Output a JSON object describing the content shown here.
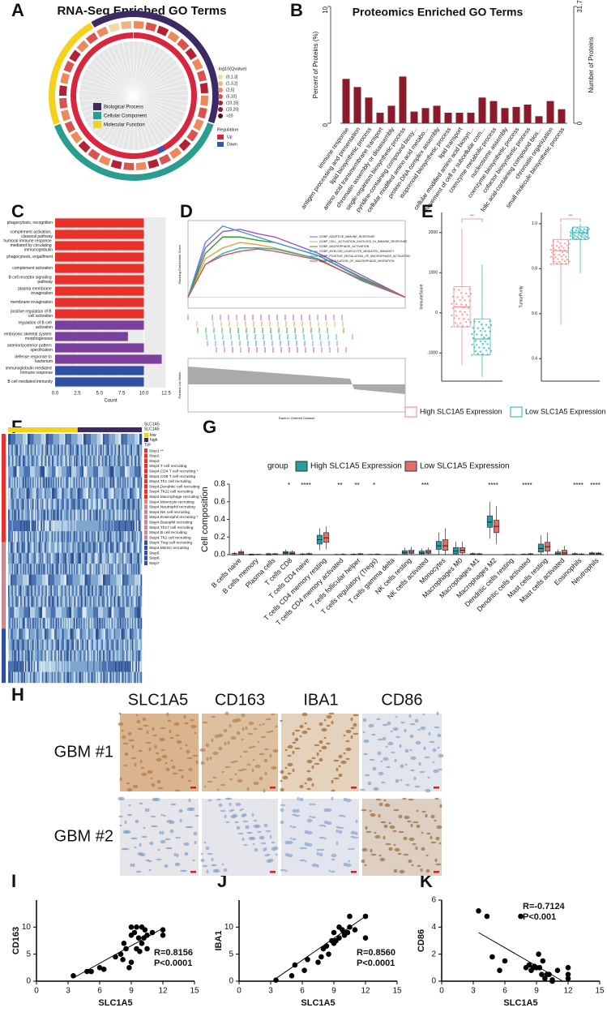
{
  "chart_data": [
    {
      "type": "circos",
      "panel": "A",
      "title": "RNA-Seq Enriched GO Terms",
      "categories": [
        "Biological Process",
        "Cellular Component",
        "Molecular Function"
      ],
      "colors": [
        "#3b2a63",
        "#2a9d8f",
        "#f2d21b"
      ],
      "color_scale": {
        "title": "-log10(Qvalue)",
        "labels": [
          "(0,1.3]",
          "(1.3,2]",
          "(2,5]",
          "(5,10]",
          "(10,15]",
          "(15,20]",
          ">20"
        ],
        "colors": [
          "#f7d9a8",
          "#f4b183",
          "#ec8a5c",
          "#d9534f",
          "#b22234",
          "#8b1a2b",
          "#5a0f1d"
        ]
      },
      "regulation": {
        "title": "Regulation",
        "labels": [
          "Up",
          "Down"
        ],
        "colors": [
          "#d7263d",
          "#3a57a7"
        ]
      }
    },
    {
      "type": "bar",
      "panel": "B",
      "title": "Proteomics Enriched GO Terms",
      "ylabel": "Percent of Proteins (%)",
      "y2label": "Number of Proteins",
      "color": "#8b1a2b",
      "categories": [
        "immune response",
        "antigen processing and presentation",
        "lipid biosynthetic process",
        "amino acid transmembrane transport",
        "chromatin assembly or disassembly",
        "single-organism biosynthetic process",
        "pyridine-containing compound biosy...",
        "cellular modified amino acid metabo...",
        "protein-DNA complex assembly",
        "isoprenoid biosynthetic process",
        "lipid transport",
        "cellular modified amino acid biosyn...",
        "movement of cell or subcellular com...",
        "coenzyme metabolic process",
        "nucleosome assembly",
        "coenzyme biosynthetic process",
        "cofactor biosynthetic process",
        "folic acid-containing compound bios...",
        "chromatin organization",
        "small molecule biosynthetic process"
      ],
      "values": [
        3.8,
        3.1,
        2.2,
        0.9,
        1.5,
        4.0,
        1.0,
        1.3,
        1.5,
        0.9,
        0.9,
        0.9,
        2.2,
        1.9,
        1.3,
        1.4,
        1.6,
        0.6,
        1.9,
        1.2
      ],
      "ylim": [
        0,
        10
      ],
      "yticks": [
        0,
        10
      ],
      "y2lim": [
        0,
        31.7
      ],
      "y2ticks": [
        0,
        31.7
      ]
    },
    {
      "type": "hbar",
      "panel": "C",
      "xlabel": "Count",
      "xlim": [
        0,
        12.5
      ],
      "xticks": [
        {
          "value": 0,
          "label": "0.0"
        },
        2.5,
        {
          "value": 5,
          "label": "5.0"
        },
        7.5,
        {
          "value": 10,
          "label": "10.0"
        },
        12.5
      ],
      "categories": [
        "phagocytosis, recognition",
        "complement activation, classical pathway",
        "humoral immune response mediated by circulating immunoglobulin",
        "phagocytosis, engulfment",
        "complement activation",
        "B cell receptor signaling pathway",
        "plasma membrane invagination",
        "membrane invagination",
        "positive regulation of B cell activation",
        "regulation of B cell activation",
        "embryonic skeletal system morphogenesis",
        "anterior/posterior pattern specification",
        "defense response to bacterium",
        "immunoglobulin mediated immune response",
        "B cell mediated immunity"
      ],
      "values": [
        10,
        10,
        10,
        10,
        10,
        10,
        10,
        10,
        10,
        10,
        8.2,
        10,
        12,
        10,
        10
      ],
      "colors": [
        "#e8312a",
        "#e8312a",
        "#e8312a",
        "#e8312a",
        "#e8312a",
        "#e8312a",
        "#e8312a",
        "#e8312a",
        "#e8312a",
        "#7b3f9e",
        "#7b3f9e",
        "#7b3f9e",
        "#7b3f9e",
        "#2f4fa2",
        "#2f4fa2"
      ]
    },
    {
      "type": "line",
      "panel": "D",
      "ylabel": "Running Enrichment Score",
      "xlabel": "Rank in Ordered Dataset",
      "metric_label": "Ranked List Metric",
      "xlim": [
        0,
        25000
      ],
      "ylim": [
        -0.1,
        0.7
      ],
      "x": [
        0,
        2000,
        4000,
        6000,
        8000,
        10000,
        15000,
        20000,
        25000
      ],
      "series": [
        {
          "name": "GOBP_ADAPTIVE_IMMUNE_RESPONSE",
          "color": "#9b59b6",
          "values": [
            0,
            0.45,
            0.6,
            0.62,
            0.58,
            0.55,
            0.4,
            0.2,
            0
          ]
        },
        {
          "name": "GOBP_CELL_ACTIVATION_INVOLVED_IN_IMMUNE_RESPONSE",
          "color": "#e6a03c",
          "values": [
            0,
            0.35,
            0.45,
            0.5,
            0.48,
            0.45,
            0.35,
            0.15,
            0
          ]
        },
        {
          "name": "GOBP_MACROPHAGE_ACTIVATION",
          "color": "#2ca02c",
          "values": [
            0,
            0.4,
            0.55,
            0.55,
            0.52,
            0.5,
            0.38,
            0.18,
            0
          ]
        },
        {
          "name": "GOBP_MYELOID_LEUKOCYTE_MEDIATED_IMMUNITY",
          "color": "#20b2aa",
          "values": [
            0,
            0.3,
            0.4,
            0.45,
            0.45,
            0.44,
            0.35,
            0.15,
            0
          ]
        },
        {
          "name": "GOBP_POSITIVE_REGULATION_OF_MACROPHAGE_ACTIVATION",
          "color": "#4a90d9",
          "values": [
            0,
            0.5,
            0.65,
            0.6,
            0.55,
            0.5,
            0.38,
            0.17,
            0
          ]
        },
        {
          "name": "GOBP_REGULATION_OF_MACROPHAGE_MIGRATION",
          "color": "#e05050",
          "values": [
            0,
            0.3,
            0.38,
            0.42,
            0.44,
            0.42,
            0.34,
            0.16,
            0
          ]
        }
      ]
    },
    {
      "type": "box",
      "panel": "E",
      "ylabel": "ImmuneScore",
      "ylim": [
        -1700,
        2500
      ],
      "yticks": [
        2000,
        1000,
        0,
        -1000
      ],
      "significance": [
        "***"
      ],
      "series": [
        {
          "name": "High SLC1A5 Expression",
          "color": "#f08080",
          "boxes": [
            [
              -1300,
              -350,
              150,
              650,
              2100
            ]
          ]
        },
        {
          "name": "Low SLC1A5 Expression",
          "color": "#20b2aa",
          "boxes": [
            [
              -1600,
              -1050,
              -650,
              -150,
              1200
            ]
          ]
        }
      ]
    },
    {
      "type": "box",
      "ylabel": "TumorPurity",
      "ylim": [
        0.3,
        1.05
      ],
      "yticks": [
        {
          "value": 1,
          "label": "1.0"
        },
        0.8,
        0.6,
        0.4
      ],
      "significance": [
        "***"
      ],
      "series": [
        {
          "color": "#f08080",
          "boxes": [
            [
              0.55,
              0.82,
              0.88,
              0.93,
              1.0
            ]
          ]
        },
        {
          "color": "#20b2aa",
          "boxes": [
            [
              0.78,
              0.93,
              0.96,
              0.985,
              1.0
            ]
          ]
        }
      ]
    },
    {
      "type": "heatmap",
      "panel": "F",
      "gene": "SLC1A5",
      "legend_title": "SLC1A5",
      "legend_labels": [
        "low",
        "high"
      ],
      "legend_colors": [
        "#f2d21b",
        "#3b2a63"
      ],
      "row_title": "TIP",
      "rows": [
        "Step1 **",
        "Step2",
        "Step3",
        "Step4.T cell recruiting",
        "Step4.CD4 T cell recruiting *",
        "Step4.CD8 T cell recruiting",
        "Step4.Th1 cell recruiting",
        "Step4.Dendritic cell recruiting",
        "Step4.Th22 cell recruiting",
        "Step4.Macrophage recruiting *",
        "Step4.Monocyte recruiting",
        "Step4.Neutrophil recruiting",
        "Step4.NK cell recruiting",
        "Step4.Eosinophil recruiting *",
        "Step4.Basophil recruiting",
        "Step4.Th17 cell recruiting",
        "Step4.B cell recruiting",
        "Step4.Th2 cell recruiting",
        "Step4.Treg cell recruiting",
        "Step4.MDSC recruiting",
        "Step5",
        "Step6",
        "Step7"
      ]
    },
    {
      "type": "box",
      "panel": "G",
      "ylabel": "Cell composition",
      "legend_title": "group",
      "ylim": [
        0,
        0.8
      ],
      "yticks": [
        {
          "value": 0,
          "label": "0.0"
        },
        0.2,
        0.4,
        0.6,
        0.8
      ],
      "categories": [
        "B cells naive",
        "B cells memory",
        "Plasma cells",
        "T cells CD8",
        "T cells CD4 naive",
        "T cells CD4 memory resting",
        "T cells CD4 memory activated",
        "T cells follicular helper",
        "T cells regulatory (Tregs)",
        "T cells gamma delta",
        "NK cells resting",
        "NK cells activated",
        "Monocytes",
        "Macrophages M0",
        "Macrophages M1",
        "Macrophages M2",
        "Dendritic cells resting",
        "Dendritic cells activated",
        "Mast cells resting",
        "Mast cells activated",
        "Eosinophils",
        "Neutrophils"
      ],
      "significance": [
        null,
        null,
        null,
        "*",
        "****",
        null,
        "**",
        "**",
        "*",
        null,
        null,
        "***",
        null,
        null,
        null,
        "****",
        null,
        "****",
        null,
        null,
        "****",
        "****"
      ],
      "series": [
        {
          "name": "High SLC1A5 Expression",
          "color": "#2a9d9f",
          "boxes": [
            [
              0,
              0.005,
              0.015,
              0,
              0.03
            ],
            [
              0,
              0,
              0.005,
              0,
              0.01
            ],
            [
              0,
              0.005,
              0.01,
              0,
              0.02
            ],
            [
              0,
              0.01,
              0.02,
              0.035,
              0.06
            ],
            [
              0,
              0,
              0.003,
              0.008,
              0.02
            ],
            [
              0.05,
              0.12,
              0.17,
              0.22,
              0.3
            ],
            [
              0,
              0,
              0,
              0.003,
              0.01
            ],
            [
              0,
              0,
              0.002,
              0.006,
              0.015
            ],
            [
              0,
              0,
              0,
              0.004,
              0.01
            ],
            [
              0,
              0,
              0,
              0.002,
              0.005
            ],
            [
              0,
              0.01,
              0.025,
              0.045,
              0.08
            ],
            [
              0,
              0.01,
              0.02,
              0.04,
              0.07
            ],
            [
              0,
              0.06,
              0.1,
              0.15,
              0.25
            ],
            [
              0,
              0.01,
              0.04,
              0.08,
              0.15
            ],
            [
              0,
              0,
              0.005,
              0.012,
              0.025
            ],
            [
              0.18,
              0.31,
              0.37,
              0.44,
              0.6
            ],
            [
              0,
              0,
              0,
              0.003,
              0.01
            ],
            [
              0,
              0,
              0.002,
              0.006,
              0.015
            ],
            [
              0,
              0.03,
              0.07,
              0.12,
              0.22
            ],
            [
              0,
              0,
              0.01,
              0.03,
              0.06
            ],
            [
              0,
              0,
              0.005,
              0.012,
              0.025
            ],
            [
              0,
              0.005,
              0.012,
              0.02,
              0.035
            ]
          ]
        },
        {
          "name": "Low SLC1A5 Expression",
          "color": "#e0706a",
          "boxes": [
            [
              0,
              0.005,
              0.02,
              0.035,
              0.06
            ],
            [
              0,
              0,
              0,
              0.005,
              0.01
            ],
            [
              0,
              0,
              0.005,
              0.01,
              0.02
            ],
            [
              0,
              0.005,
              0.015,
              0.03,
              0.05
            ],
            [
              0,
              0,
              0.005,
              0.012,
              0.025
            ],
            [
              0.06,
              0.14,
              0.19,
              0.25,
              0.32
            ],
            [
              0,
              0,
              0,
              0.005,
              0.015
            ],
            [
              0,
              0,
              0.004,
              0.01,
              0.02
            ],
            [
              0,
              0,
              0.002,
              0.006,
              0.015
            ],
            [
              0,
              0,
              0,
              0.002,
              0.005
            ],
            [
              0,
              0.015,
              0.03,
              0.05,
              0.09
            ],
            [
              0,
              0.015,
              0.03,
              0.05,
              0.08
            ],
            [
              0,
              0.05,
              0.1,
              0.17,
              0.3
            ],
            [
              0,
              0.02,
              0.05,
              0.08,
              0.15
            ],
            [
              0,
              0,
              0.005,
              0.01,
              0.02
            ],
            [
              0.12,
              0.25,
              0.32,
              0.39,
              0.55
            ],
            [
              0,
              0,
              0,
              0.003,
              0.01
            ],
            [
              0,
              0,
              0.004,
              0.01,
              0.02
            ],
            [
              0,
              0.04,
              0.09,
              0.14,
              0.25
            ],
            [
              0,
              0.005,
              0.02,
              0.05,
              0.1
            ],
            [
              0,
              0,
              0.003,
              0.008,
              0.02
            ],
            [
              0,
              0.005,
              0.01,
              0.018,
              0.03
            ]
          ]
        }
      ]
    },
    {
      "type": "scatter",
      "panel": "I",
      "xlabel": "SLC1A5",
      "ylabel": "CD163",
      "xlim": [
        0,
        15
      ],
      "xticks": [
        0,
        3,
        6,
        9,
        12,
        15
      ],
      "ylim": [
        0,
        15
      ],
      "yticks": [
        0,
        5,
        10
      ],
      "annotations": [
        "R=0.8156",
        "P<0.0001"
      ],
      "x": [
        3.5,
        4.8,
        5.2,
        6,
        6.4,
        7.5,
        8,
        8.2,
        8.3,
        8.5,
        8.8,
        9,
        9,
        9,
        9.3,
        9.5,
        9.5,
        9.7,
        9.8,
        10,
        10,
        10.2,
        10.3,
        10.5,
        10.5,
        11,
        12,
        12
      ],
      "y": [
        1,
        1.8,
        1.8,
        2.5,
        2.2,
        4.5,
        5,
        4,
        7,
        6,
        2.5,
        3.5,
        8.5,
        10,
        9,
        10,
        6,
        8,
        5.5,
        10,
        7,
        8,
        9.5,
        6,
        8.5,
        9,
        9.5,
        8.5
      ],
      "fit": {
        "x": [
          3.5,
          12
        ],
        "y": [
          0.6,
          9.8
        ]
      }
    },
    {
      "type": "scatter",
      "panel": "J",
      "xlabel": "SLC1A5",
      "ylabel": "IBA1",
      "xlim": [
        0,
        15
      ],
      "xticks": [
        0,
        3,
        6,
        9,
        12,
        15
      ],
      "ylim": [
        0,
        15
      ],
      "yticks": [
        0,
        5,
        10
      ],
      "annotations": [
        "R=0.8560",
        "P<0.0001"
      ],
      "x": [
        3.5,
        5,
        5.3,
        6.2,
        6.5,
        7.5,
        7.8,
        8,
        8.3,
        8.5,
        8.8,
        9,
        9,
        9.2,
        9.5,
        9.5,
        9.8,
        10,
        10,
        10.3,
        10.5,
        10.5,
        11,
        12,
        12
      ],
      "y": [
        0.2,
        1,
        3,
        2,
        4,
        3.5,
        4.5,
        6,
        6.5,
        5,
        7.5,
        7,
        9,
        7.5,
        8,
        10,
        9.5,
        8.5,
        9,
        9,
        10,
        12,
        9.5,
        12,
        8
      ],
      "fit": {
        "x": [
          3.5,
          12
        ],
        "y": [
          0.5,
          12
        ]
      }
    },
    {
      "type": "scatter",
      "panel": "K",
      "xlabel": "SLC1A5",
      "ylabel": "CD86",
      "xlim": [
        0,
        15
      ],
      "xticks": [
        0,
        3,
        6,
        9,
        12,
        15
      ],
      "ylim": [
        0,
        6
      ],
      "yticks": [
        0,
        2,
        4,
        6
      ],
      "annotations": [
        "R=-0.7124",
        "P<0.001"
      ],
      "x": [
        3.5,
        4.3,
        4.8,
        5.5,
        6,
        7.5,
        8,
        8.3,
        8.5,
        8.7,
        8.8,
        9,
        9.2,
        9.3,
        9.5,
        9.6,
        9.8,
        10,
        10.2,
        10.5,
        10.5,
        11,
        12,
        12,
        12
      ],
      "y": [
        5.2,
        4.8,
        1.8,
        0.8,
        1.5,
        4.8,
        1,
        1.2,
        0.8,
        1,
        1.1,
        1,
        2,
        1,
        0.5,
        1.5,
        0.2,
        0.5,
        0.5,
        0.1,
        0,
        0.8,
        1,
        0.2,
        0.5
      ],
      "fit": {
        "x": [
          3.5,
          11.5
        ],
        "y": [
          3.6,
          0
        ]
      }
    }
  ],
  "ihc": {
    "panel": "H",
    "columns": [
      "SLC1A5",
      "CD163",
      "IBA1",
      "CD86"
    ],
    "rows": [
      "GBM #1",
      "GBM #2"
    ]
  }
}
